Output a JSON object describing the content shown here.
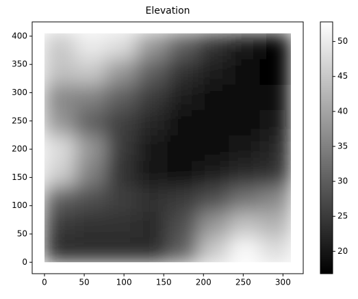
{
  "chart_data": {
    "type": "heatmap",
    "title": "Elevation",
    "colormap": "gray",
    "extent": [
      0,
      310,
      0,
      405
    ],
    "z": [
      [
        23,
        23,
        23,
        23,
        30,
        45,
        52,
        48
      ],
      [
        25,
        24,
        24,
        23,
        28,
        38,
        44,
        42
      ],
      [
        30,
        28,
        26,
        24,
        25,
        28,
        33,
        36
      ],
      [
        46,
        35,
        24,
        20,
        19,
        21,
        23,
        24
      ],
      [
        48,
        38,
        25,
        20,
        18,
        18,
        20,
        22
      ],
      [
        38,
        30,
        26,
        22,
        19,
        18,
        19,
        20
      ],
      [
        36,
        35,
        30,
        25,
        21,
        19,
        18,
        18
      ],
      [
        44,
        45,
        38,
        30,
        24,
        21,
        19,
        17
      ],
      [
        45,
        50,
        48,
        38,
        30,
        24,
        20,
        17
      ]
    ],
    "xlim": [
      -15.5,
      325.5
    ],
    "ylim": [
      -20.25,
      425.25
    ],
    "xticks": [
      0,
      50,
      100,
      150,
      200,
      250,
      300
    ],
    "yticks": [
      0,
      50,
      100,
      150,
      200,
      250,
      300,
      350,
      400
    ],
    "clim": [
      16.8,
      52.8
    ],
    "cticks": [
      20,
      25,
      30,
      35,
      40,
      45,
      50
    ]
  }
}
